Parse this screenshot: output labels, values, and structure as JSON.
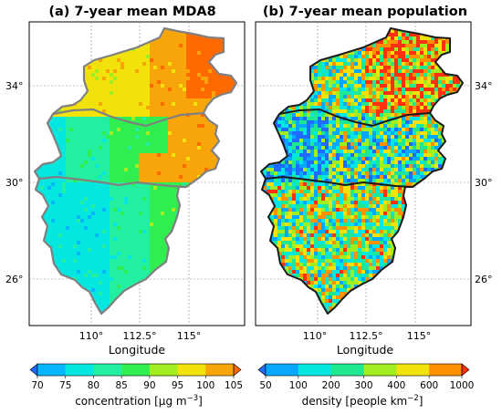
{
  "panels": [
    {
      "id": "a",
      "title": "(a) 7-year mean MDA8",
      "xlabel": "Longitude",
      "xticks": [
        "110°",
        "112.5°",
        "115°"
      ],
      "yticks": [
        "34°",
        "30°",
        "26°"
      ],
      "colorbar": {
        "label_main": "concentration [μg m",
        "label_exp": "−3",
        "label_end": "]",
        "ticks": [
          "70",
          "75",
          "80",
          "85",
          "90",
          "95",
          "100",
          "105"
        ],
        "colors": [
          "#1f6bff",
          "#06b7ff",
          "#04e7e0",
          "#22f0a0",
          "#30ee50",
          "#a0ee20",
          "#f0e20a",
          "#f8a50a",
          "#ff6a00"
        ]
      }
    },
    {
      "id": "b",
      "title": "(b) 7-year mean population",
      "xlabel": "Longitude",
      "xticks": [
        "110°",
        "112.5°",
        "115°"
      ],
      "yticks": [
        "34°",
        "30°",
        "26°"
      ],
      "colorbar": {
        "label_main": "density [people km",
        "label_exp": "−2",
        "label_end": "]",
        "ticks": [
          "50",
          "100",
          "200",
          "300",
          "400",
          "600",
          "1000"
        ],
        "colors": [
          "#1f6bff",
          "#06a8ff",
          "#04e7e0",
          "#20e890",
          "#a0ee20",
          "#f0e20a",
          "#ff9000",
          "#ff3010"
        ]
      }
    }
  ],
  "chart_data": [
    {
      "type": "heatmap",
      "title": "(a) 7-year mean MDA8",
      "xlabel": "Longitude",
      "ylabel": "",
      "xticks": [
        110,
        112.5,
        115
      ],
      "yticks": [
        34,
        30,
        26
      ],
      "colorbar_label": "concentration [μg m−3]",
      "colorbar_levels": [
        70,
        75,
        80,
        85,
        90,
        95,
        100,
        105
      ],
      "regions": [
        {
          "name": "north",
          "approx_value": 97
        },
        {
          "name": "northeast",
          "approx_value": 102
        },
        {
          "name": "middle",
          "approx_value": 87
        },
        {
          "name": "south",
          "approx_value": 82
        }
      ]
    },
    {
      "type": "heatmap",
      "title": "(b) 7-year mean population",
      "xlabel": "Longitude",
      "ylabel": "",
      "xticks": [
        110,
        112.5,
        115
      ],
      "yticks": [
        34,
        30,
        26
      ],
      "colorbar_label": "density [people km−2]",
      "colorbar_levels": [
        50,
        100,
        200,
        300,
        400,
        600,
        1000
      ]
    }
  ]
}
